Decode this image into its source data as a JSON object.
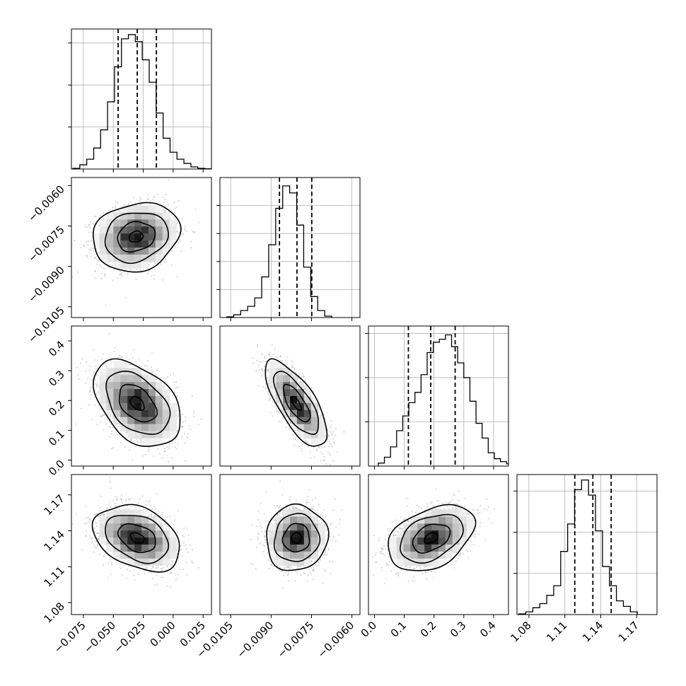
{
  "chart_data": {
    "type": "corner",
    "grid": true,
    "quantile_lines": "dashed",
    "parameters": [
      {
        "range": [
          -0.085,
          0.032
        ],
        "ticks": [
          {
            "value": -0.075,
            "label": "−0.075"
          },
          {
            "value": -0.05,
            "label": "−0.050"
          },
          {
            "value": -0.025,
            "label": "−0.025"
          },
          {
            "value": 0.0,
            "label": "0.000"
          },
          {
            "value": 0.025,
            "label": "0.025"
          }
        ],
        "quantiles": [
          -0.046,
          -0.03,
          -0.014
        ],
        "hist": {
          "bin_start": -0.0838,
          "bin_width": 0.0058,
          "counts": [
            0.5,
            3,
            7,
            15,
            28,
            48,
            73,
            93,
            96,
            91,
            78,
            62,
            40,
            22,
            12,
            7,
            4,
            1.5,
            0.5,
            0.2
          ]
        },
        "hist_ymax": 100,
        "hist_ticks": [
          30,
          60,
          90
        ]
      },
      {
        "range": [
          -0.0109,
          -0.0057
        ],
        "ticks": [
          {
            "value": -0.0105,
            "label": "−0.0105"
          },
          {
            "value": -0.009,
            "label": "−0.0090"
          },
          {
            "value": -0.0075,
            "label": "−0.0075"
          },
          {
            "value": -0.006,
            "label": "−0.0060"
          }
        ],
        "quantiles": [
          -0.00869,
          -0.00804,
          -0.00749
        ],
        "hist": {
          "bin_start": -0.01065,
          "bin_width": 0.00026,
          "counts": [
            0.5,
            2,
            5,
            8,
            14,
            29,
            52,
            78,
            94,
            89,
            66,
            36,
            15,
            5,
            1
          ]
        },
        "hist_ymax": 100,
        "hist_ticks": [
          20,
          40,
          60,
          80
        ]
      },
      {
        "range": [
          -0.02,
          0.45
        ],
        "ticks": [
          {
            "value": 0.0,
            "label": "0.0"
          },
          {
            "value": 0.1,
            "label": "0.1"
          },
          {
            "value": 0.2,
            "label": "0.2"
          },
          {
            "value": 0.3,
            "label": "0.3"
          },
          {
            "value": 0.4,
            "label": "0.4"
          }
        ],
        "quantiles": [
          0.114,
          0.189,
          0.271
        ],
        "hist": {
          "bin_start": 0.013,
          "bin_width": 0.0205,
          "counts": [
            2,
            6,
            13,
            24,
            34,
            43,
            50,
            62,
            77,
            84,
            86,
            89,
            81,
            70,
            60,
            44,
            29,
            19,
            9,
            5,
            3,
            1.5,
            0.5
          ]
        },
        "hist_ymax": 95,
        "hist_ticks": [
          30,
          60,
          90
        ]
      },
      {
        "range": [
          1.07,
          1.187
        ],
        "ticks": [
          {
            "value": 1.08,
            "label": "1.08"
          },
          {
            "value": 1.11,
            "label": "1.11"
          },
          {
            "value": 1.14,
            "label": "1.14"
          },
          {
            "value": 1.17,
            "label": "1.17"
          }
        ],
        "quantiles": [
          1.1183,
          1.1334,
          1.1487
        ],
        "hist": {
          "bin_start": 1.0716,
          "bin_width": 0.00582,
          "counts": [
            0.5,
            2,
            5,
            8,
            14,
            21,
            46,
            66,
            91,
            98,
            87,
            61,
            35,
            21,
            10,
            6,
            2
          ]
        },
        "hist_ymax": 102,
        "hist_ticks": [
          30,
          60,
          90
        ]
      }
    ],
    "pairs": [
      {
        "x_param": 0,
        "y_param": 1,
        "mean": [
          -0.031,
          -0.0079
        ],
        "sd": [
          0.0165,
          0.00058
        ],
        "rho": 0.15
      },
      {
        "x_param": 0,
        "y_param": 2,
        "mean": [
          -0.03,
          0.19
        ],
        "sd": [
          0.0165,
          0.066
        ],
        "rho": -0.42
      },
      {
        "x_param": 1,
        "y_param": 2,
        "mean": [
          -0.00806,
          0.19
        ],
        "sd": [
          0.00052,
          0.066
        ],
        "rho": -0.72
      },
      {
        "x_param": 0,
        "y_param": 3,
        "mean": [
          -0.03,
          1.134
        ],
        "sd": [
          0.0165,
          0.0125
        ],
        "rho": -0.33
      },
      {
        "x_param": 1,
        "y_param": 3,
        "mean": [
          -0.00806,
          1.134
        ],
        "sd": [
          0.00052,
          0.0125
        ],
        "rho": 0.05
      },
      {
        "x_param": 2,
        "y_param": 3,
        "mean": [
          0.19,
          1.134
        ],
        "sd": [
          0.066,
          0.0125
        ],
        "rho": 0.38
      }
    ]
  }
}
